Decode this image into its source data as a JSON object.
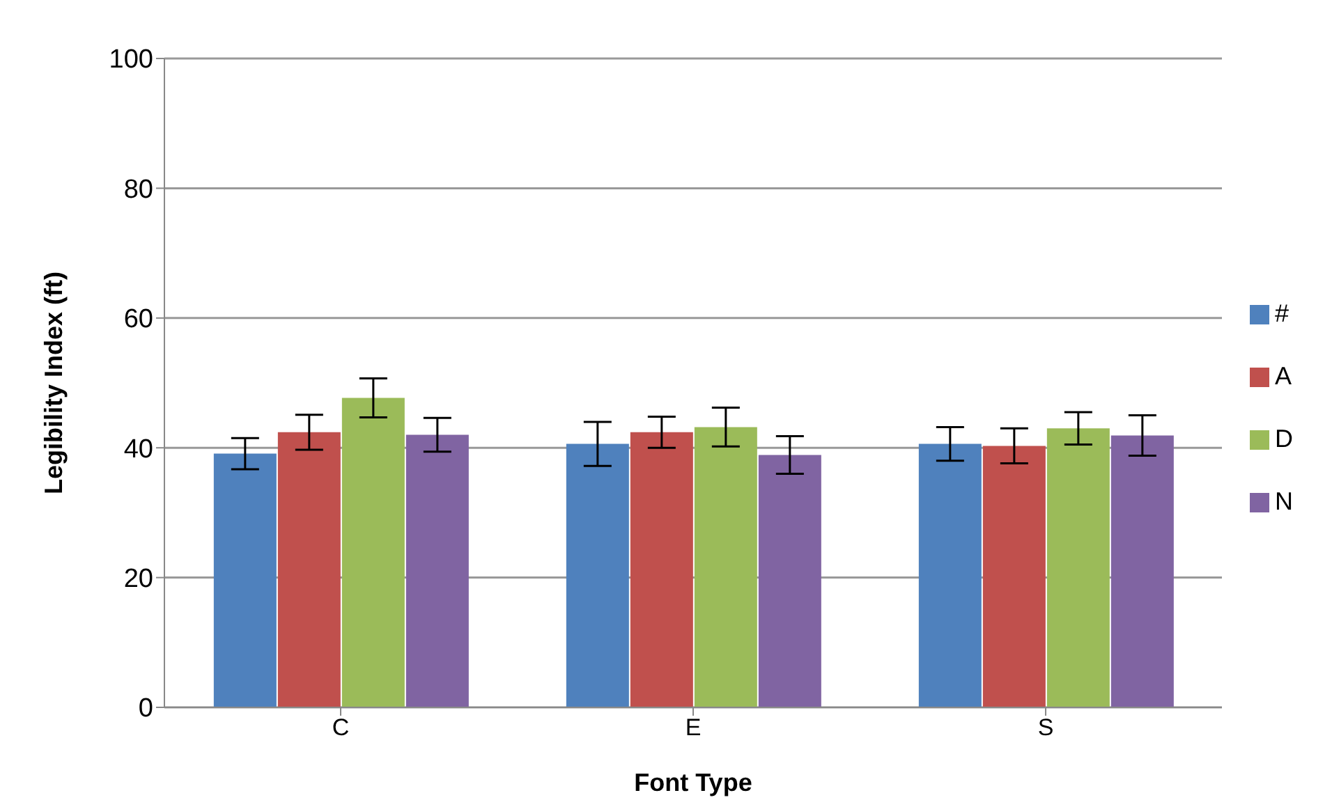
{
  "chart_data": {
    "type": "bar",
    "xlabel": "Font Type",
    "ylabel": "Legibility Index (ft)",
    "categories": [
      "C",
      "E",
      "S"
    ],
    "ylim": [
      0,
      100
    ],
    "yticks": [
      0,
      20,
      40,
      60,
      80,
      100
    ],
    "grid": "y",
    "legend": "right",
    "series": [
      {
        "name": "#",
        "color": "#4f81bd",
        "values": [
          39.1,
          40.6,
          40.6
        ],
        "errors": [
          2.4,
          3.4,
          2.6
        ]
      },
      {
        "name": "A",
        "color": "#c0504d",
        "values": [
          42.4,
          42.4,
          40.3
        ],
        "errors": [
          2.7,
          2.4,
          2.7
        ]
      },
      {
        "name": "D",
        "color": "#9bbb59",
        "values": [
          47.7,
          43.2,
          43.0
        ],
        "errors": [
          3.0,
          3.0,
          2.5
        ]
      },
      {
        "name": "N",
        "color": "#8064a2",
        "values": [
          42.0,
          38.9,
          41.9
        ],
        "errors": [
          2.6,
          2.9,
          3.1
        ]
      }
    ]
  }
}
